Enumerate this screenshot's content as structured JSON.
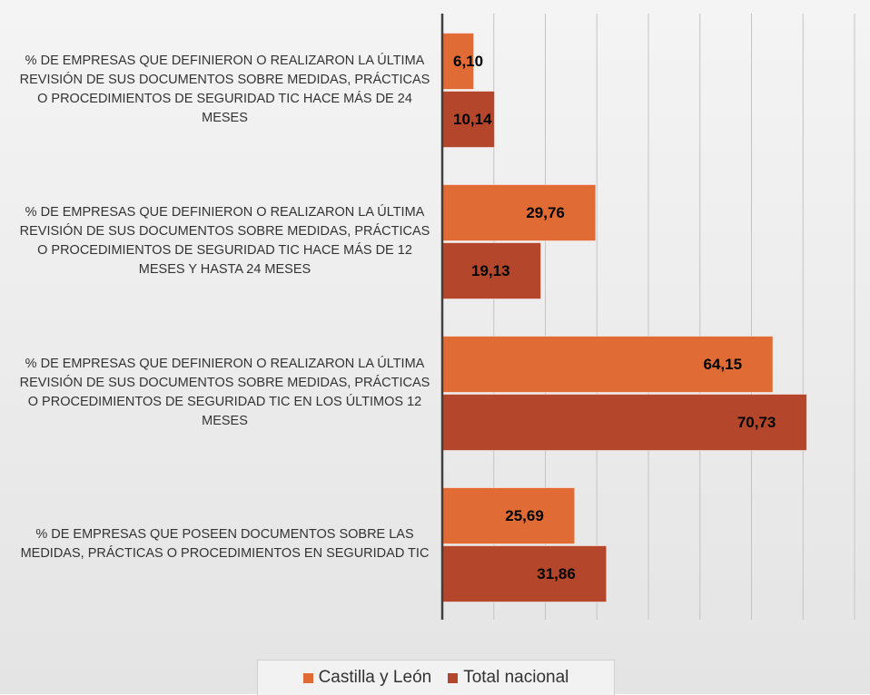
{
  "chart_data": {
    "type": "bar",
    "orientation": "horizontal",
    "categories": [
      "% DE EMPRESAS QUE DEFINIERON O REALIZARON LA ÚLTIMA REVISIÓN DE SUS DOCUMENTOS SOBRE MEDIDAS, PRÁCTICAS O PROCEDIMIENTOS DE SEGURIDAD TIC HACE MÁS DE 24 MESES",
      "% DE EMPRESAS QUE DEFINIERON O REALIZARON LA ÚLTIMA REVISIÓN DE SUS DOCUMENTOS SOBRE MEDIDAS, PRÁCTICAS O PROCEDIMIENTOS DE SEGURIDAD TIC HACE MÁS DE 12 MESES Y HASTA 24 MESES",
      "% DE EMPRESAS QUE DEFINIERON O REALIZARON LA ÚLTIMA REVISIÓN DE SUS DOCUMENTOS SOBRE MEDIDAS, PRÁCTICAS O PROCEDIMIENTOS DE SEGURIDAD TIC EN LOS ÚLTIMOS 12 MESES",
      "% DE EMPRESAS QUE POSEEN DOCUMENTOS SOBRE LAS MEDIDAS, PRÁCTICAS O PROCEDIMIENTOS EN SEGURIDAD TIC"
    ],
    "series": [
      {
        "name": "Castilla y León",
        "color": "#e06b35",
        "values": [
          6.1,
          29.76,
          64.15,
          25.69
        ],
        "value_labels": [
          "6,10",
          "29,76",
          "64,15",
          "25,69"
        ]
      },
      {
        "name": "Total nacional",
        "color": "#b4472b",
        "values": [
          10.14,
          19.13,
          70.73,
          31.86
        ],
        "value_labels": [
          "10,14",
          "19,13",
          "70,73",
          "31,86"
        ]
      }
    ],
    "xlim": [
      0,
      80
    ],
    "xticks": [
      0,
      10,
      20,
      30,
      40,
      50,
      60,
      70,
      80
    ],
    "grid": true,
    "legend": "bottom"
  }
}
